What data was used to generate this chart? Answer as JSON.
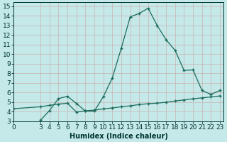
{
  "xlabel": "Humidex (Indice chaleur)",
  "background_color": "#c5e8e8",
  "grid_color": "#c8b4b4",
  "line_color": "#1a6b5a",
  "xlim": [
    0,
    23.4
  ],
  "ylim": [
    3,
    15.4
  ],
  "xticks": [
    0,
    3,
    4,
    5,
    6,
    7,
    8,
    9,
    10,
    11,
    12,
    13,
    14,
    15,
    16,
    17,
    18,
    19,
    20,
    21,
    22,
    23
  ],
  "yticks": [
    3,
    4,
    5,
    6,
    7,
    8,
    9,
    10,
    11,
    12,
    13,
    14,
    15
  ],
  "curve1_x": [
    3,
    4,
    5,
    6,
    7,
    8,
    9,
    10,
    11,
    12,
    13,
    14,
    15,
    16,
    17,
    18,
    19,
    20,
    21,
    22,
    23
  ],
  "curve1_y": [
    3.1,
    4.1,
    5.35,
    5.6,
    4.85,
    4.05,
    4.05,
    5.55,
    7.5,
    10.6,
    13.9,
    14.25,
    14.8,
    13.0,
    11.5,
    10.4,
    8.3,
    8.35,
    6.2,
    5.8,
    6.2
  ],
  "curve2_x": [
    0,
    3,
    4,
    5,
    6,
    7,
    8,
    9,
    10,
    11,
    12,
    13,
    14,
    15,
    16,
    17,
    18,
    19,
    20,
    21,
    22,
    23
  ],
  "curve2_y": [
    4.3,
    4.5,
    4.65,
    4.78,
    4.87,
    3.95,
    4.08,
    4.15,
    4.28,
    4.38,
    4.5,
    4.6,
    4.73,
    4.82,
    4.88,
    4.97,
    5.1,
    5.22,
    5.33,
    5.43,
    5.53,
    5.63
  ],
  "font_color": "#003333",
  "fontsize_label": 7,
  "fontsize_tick": 6.5
}
